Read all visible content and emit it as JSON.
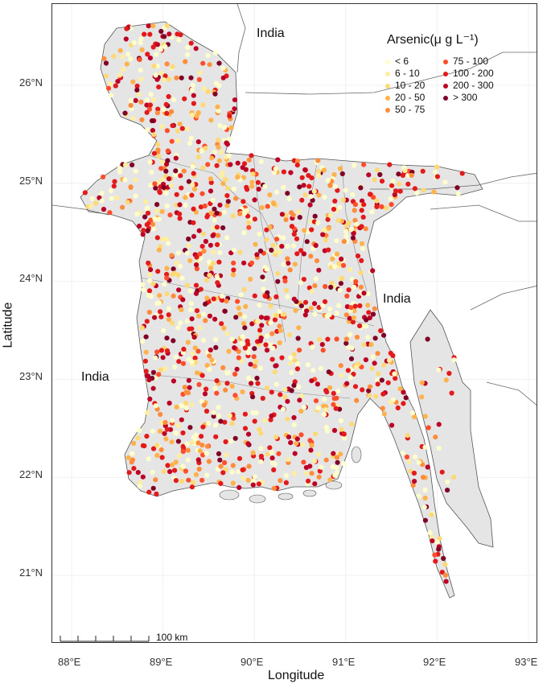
{
  "map": {
    "xlabel": "Longitude",
    "ylabel": "Latitude",
    "x_ticks": [
      "88°E",
      "89°E",
      "90°E",
      "91°E",
      "92°E",
      "93°E"
    ],
    "y_ticks": [
      "26°N",
      "25°N",
      "24°N",
      "23°N",
      "22°N",
      "21°N"
    ],
    "country_labels": [
      "India",
      "India",
      "India"
    ],
    "scale_bar": "100 km",
    "land_color": "#e5e5e5",
    "border_color": "#555555"
  },
  "legend": {
    "title": "Arsenic(μ g L⁻¹)",
    "classes": [
      {
        "label": "< 6",
        "color": "#ffffcc"
      },
      {
        "label": "6 - 10",
        "color": "#ffeda0"
      },
      {
        "label": "10 - 20",
        "color": "#fed976"
      },
      {
        "label": "20 - 50",
        "color": "#feb24c"
      },
      {
        "label": "50 - 75",
        "color": "#fd8d3c"
      },
      {
        "label": "75 - 100",
        "color": "#fc4e2a"
      },
      {
        "label": "100 - 200",
        "color": "#e31a1c"
      },
      {
        "label": "200 - 300",
        "color": "#bd0026"
      },
      {
        "label": "> 300",
        "color": "#800026"
      }
    ]
  }
}
